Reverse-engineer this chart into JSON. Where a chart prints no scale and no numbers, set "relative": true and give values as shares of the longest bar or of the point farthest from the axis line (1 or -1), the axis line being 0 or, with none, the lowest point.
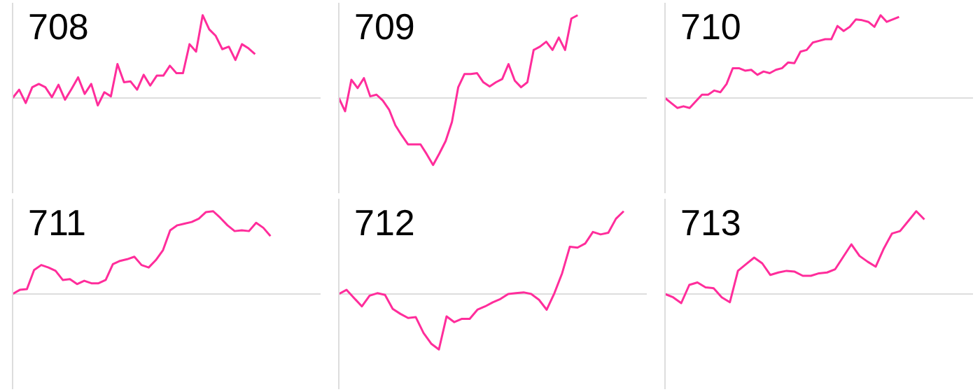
{
  "chart_data": [
    {
      "type": "line",
      "title": "708",
      "relative": true,
      "categories": [
        null,
        null,
        null,
        null,
        null,
        null,
        null,
        null,
        null,
        null,
        null,
        null,
        null,
        null,
        null,
        null,
        null,
        null,
        null,
        null,
        null,
        null,
        null,
        null,
        null,
        null,
        null,
        null,
        null,
        null,
        null,
        null,
        null,
        null,
        null,
        null,
        null,
        null,
        null,
        null,
        null,
        null,
        null,
        null,
        null,
        null,
        null,
        null
      ],
      "series": [
        {
          "color": "#ff2d9b",
          "values": [
            0,
            0.1,
            -0.06,
            0.13,
            0.17,
            0.13,
            0.01,
            0.16,
            -0.02,
            0.11,
            0.25,
            0.05,
            0.17,
            -0.09,
            0.07,
            0.02,
            0.41,
            0.19,
            0.2,
            0.1,
            0.28,
            0.15,
            0.27,
            0.27,
            0.39,
            0.3,
            0.3,
            0.65,
            0.56,
            1,
            0.83,
            0.75,
            0.59,
            0.62,
            0.46,
            0.65,
            0.6,
            0.53,
            null,
            null,
            null,
            null,
            null,
            null,
            null,
            null,
            null,
            null
          ]
        }
      ],
      "marker": "none",
      "line_style": "solid"
    },
    {
      "type": "line",
      "title": "709",
      "relative": true,
      "categories": [
        null,
        null,
        null,
        null,
        null,
        null,
        null,
        null,
        null,
        null,
        null,
        null,
        null,
        null,
        null,
        null,
        null,
        null,
        null,
        null,
        null,
        null,
        null,
        null,
        null,
        null,
        null,
        null,
        null,
        null,
        null,
        null,
        null,
        null,
        null,
        null,
        null,
        null,
        null,
        null,
        null,
        null,
        null,
        null,
        null,
        null,
        null,
        null,
        null,
        null
      ],
      "series": [
        {
          "color": "#ff2d9b",
          "values": [
            0,
            -0.16,
            0.22,
            0.12,
            0.24,
            0.02,
            0.04,
            -0.03,
            -0.14,
            -0.33,
            -0.45,
            -0.56,
            -0.56,
            -0.56,
            -0.68,
            -0.81,
            -0.67,
            -0.52,
            -0.29,
            0.13,
            0.29,
            0.29,
            0.3,
            0.19,
            0.14,
            0.19,
            0.23,
            0.41,
            0.21,
            0.13,
            0.19,
            0.58,
            0.62,
            0.68,
            0.58,
            0.73,
            0.58,
            0.96,
            1,
            null,
            null,
            null,
            null,
            null,
            null,
            null,
            null,
            null,
            null,
            null
          ]
        }
      ],
      "marker": "none",
      "line_style": "solid"
    },
    {
      "type": "line",
      "title": "710",
      "relative": true,
      "categories": [
        null,
        null,
        null,
        null,
        null,
        null,
        null,
        null,
        null,
        null,
        null,
        null,
        null,
        null,
        null,
        null,
        null,
        null,
        null,
        null,
        null,
        null,
        null,
        null,
        null,
        null,
        null,
        null,
        null,
        null,
        null,
        null,
        null,
        null,
        null,
        null,
        null,
        null,
        null,
        null,
        null,
        null,
        null,
        null,
        null,
        null,
        null,
        null,
        null,
        null,
        null
      ],
      "series": [
        {
          "color": "#ff2d9b",
          "values": [
            0,
            -0.06,
            -0.12,
            -0.1,
            -0.12,
            -0.04,
            0.04,
            0.04,
            0.09,
            0.07,
            0.17,
            0.36,
            0.36,
            0.33,
            0.34,
            0.28,
            0.32,
            0.3,
            0.34,
            0.36,
            0.43,
            0.42,
            0.56,
            0.58,
            0.67,
            0.69,
            0.71,
            0.71,
            0.87,
            0.81,
            0.86,
            0.95,
            0.94,
            0.92,
            0.86,
            1,
            0.92,
            0.95,
            0.98,
            null,
            null,
            null,
            null,
            null,
            null,
            null,
            null,
            null,
            null,
            null,
            null
          ]
        }
      ],
      "marker": "none",
      "line_style": "solid"
    },
    {
      "type": "line",
      "title": "711",
      "relative": true,
      "categories": [
        null,
        null,
        null,
        null,
        null,
        null,
        null,
        null,
        null,
        null,
        null,
        null,
        null,
        null,
        null,
        null,
        null,
        null,
        null,
        null,
        null,
        null,
        null,
        null,
        null,
        null,
        null,
        null,
        null,
        null,
        null,
        null,
        null,
        null,
        null,
        null,
        null,
        null,
        null,
        null,
        null,
        null,
        null,
        null
      ],
      "series": [
        {
          "color": "#ff2d9b",
          "values": [
            0,
            0.05,
            0.06,
            0.29,
            0.35,
            0.32,
            0.28,
            0.17,
            0.18,
            0.12,
            0.16,
            0.13,
            0.13,
            0.17,
            0.36,
            0.4,
            0.42,
            0.45,
            0.35,
            0.32,
            0.41,
            0.53,
            0.77,
            0.83,
            0.85,
            0.87,
            0.91,
            0.99,
            1,
            0.92,
            0.83,
            0.76,
            0.77,
            0.76,
            0.86,
            0.8,
            0.7,
            null,
            null,
            null,
            null,
            null,
            null,
            null
          ]
        }
      ],
      "marker": "none",
      "line_style": "solid"
    },
    {
      "type": "line",
      "title": "712",
      "relative": true,
      "categories": [
        null,
        null,
        null,
        null,
        null,
        null,
        null,
        null,
        null,
        null,
        null,
        null,
        null,
        null,
        null,
        null,
        null,
        null,
        null,
        null,
        null,
        null,
        null,
        null,
        null,
        null,
        null,
        null,
        null,
        null,
        null,
        null,
        null,
        null,
        null,
        null,
        null,
        null,
        null,
        null,
        null
      ],
      "series": [
        {
          "color": "#ff2d9b",
          "values": [
            0,
            0.05,
            -0.05,
            -0.15,
            -0.02,
            0.01,
            -0.01,
            -0.18,
            -0.24,
            -0.29,
            -0.28,
            -0.47,
            -0.6,
            -0.67,
            -0.27,
            -0.34,
            -0.3,
            -0.3,
            -0.19,
            -0.15,
            -0.1,
            -0.06,
            0,
            0.01,
            0.02,
            0,
            -0.07,
            -0.19,
            0.01,
            0.25,
            0.57,
            0.56,
            0.61,
            0.75,
            0.72,
            0.74,
            0.91,
            1,
            null,
            null,
            null
          ]
        }
      ],
      "marker": "none",
      "line_style": "solid"
    },
    {
      "type": "line",
      "title": "713",
      "relative": true,
      "categories": [
        null,
        null,
        null,
        null,
        null,
        null,
        null,
        null,
        null,
        null,
        null,
        null,
        null,
        null,
        null,
        null,
        null,
        null,
        null,
        null,
        null,
        null,
        null,
        null,
        null,
        null,
        null,
        null,
        null,
        null,
        null,
        null,
        null,
        null,
        null,
        null,
        null,
        null,
        null
      ],
      "series": [
        {
          "color": "#ff2d9b",
          "values": [
            0,
            -0.04,
            -0.11,
            0.11,
            0.14,
            0.08,
            0.07,
            -0.04,
            -0.1,
            0.28,
            0.36,
            0.44,
            0.37,
            0.23,
            0.26,
            0.28,
            0.27,
            0.22,
            0.22,
            0.25,
            0.26,
            0.3,
            0.45,
            0.6,
            0.46,
            0.39,
            0.33,
            0.55,
            0.73,
            0.76,
            0.88,
            1,
            0.9,
            null,
            null,
            null,
            null,
            null,
            null
          ]
        }
      ],
      "marker": "none",
      "line_style": "solid"
    }
  ]
}
